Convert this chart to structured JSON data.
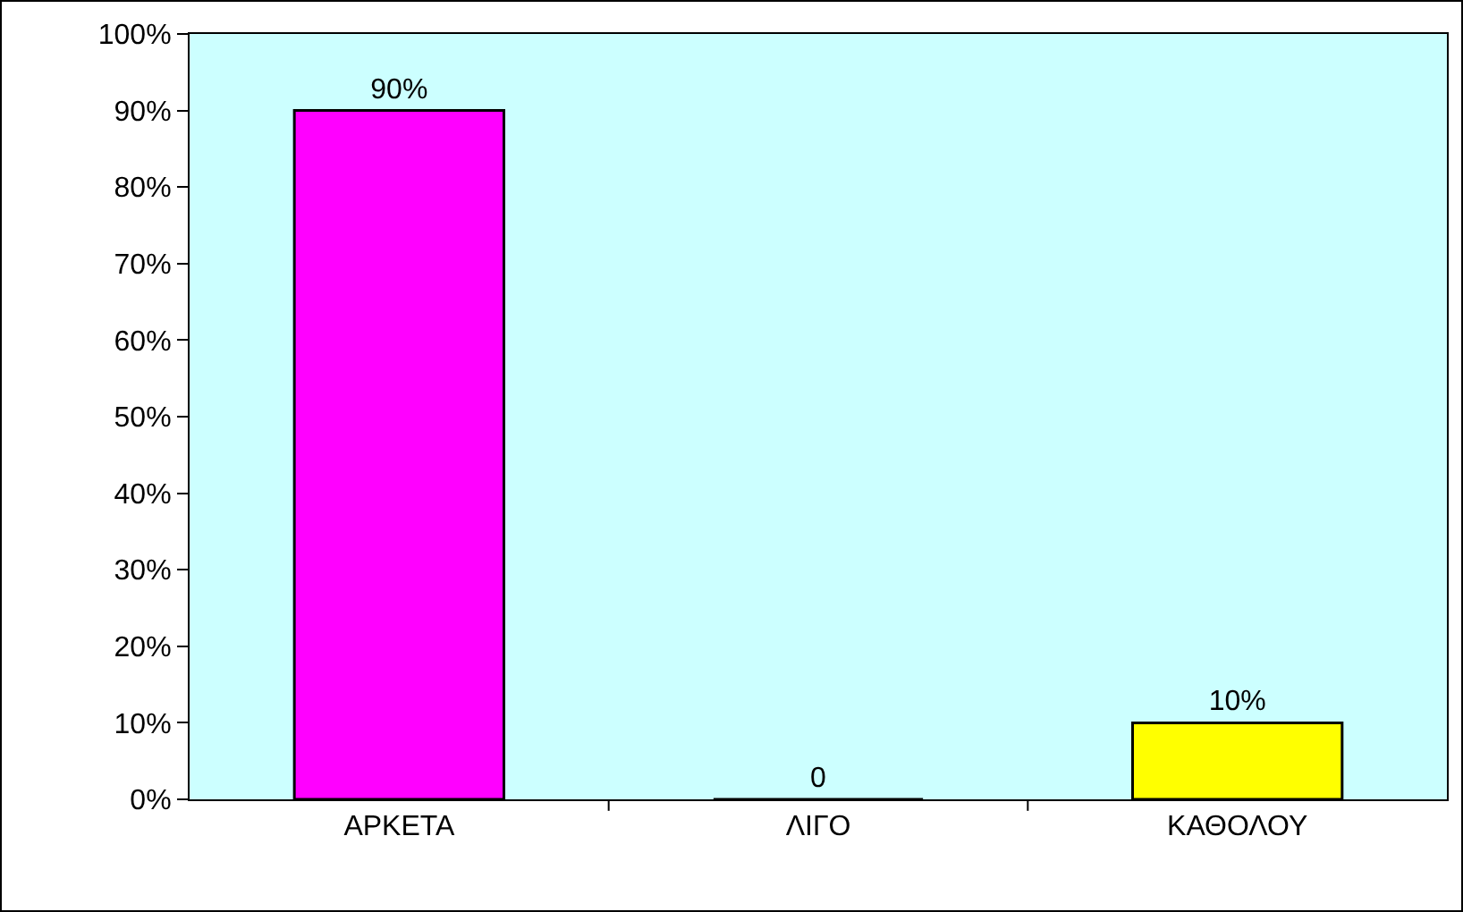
{
  "chart_data": {
    "type": "bar",
    "categories": [
      "ΑΡΚΕΤΑ",
      "ΛΙΓΟ",
      "ΚΑΘΟΛΟΥ"
    ],
    "values": [
      90,
      0,
      10
    ],
    "colors": [
      "#ff00ff",
      "#000000",
      "#ffff00"
    ],
    "value_labels": [
      "90%",
      "0",
      "10%"
    ],
    "ylim": [
      0,
      100
    ],
    "yticks": [
      {
        "value": 0,
        "label": "0%"
      },
      {
        "value": 10,
        "label": "10%"
      },
      {
        "value": 20,
        "label": "20%"
      },
      {
        "value": 30,
        "label": "30%"
      },
      {
        "value": 40,
        "label": "40%"
      },
      {
        "value": 50,
        "label": "50%"
      },
      {
        "value": 60,
        "label": "60%"
      },
      {
        "value": 70,
        "label": "70%"
      },
      {
        "value": 80,
        "label": "80%"
      },
      {
        "value": 90,
        "label": "90%"
      },
      {
        "value": 100,
        "label": "100%"
      }
    ],
    "grid": false,
    "legend": false
  }
}
